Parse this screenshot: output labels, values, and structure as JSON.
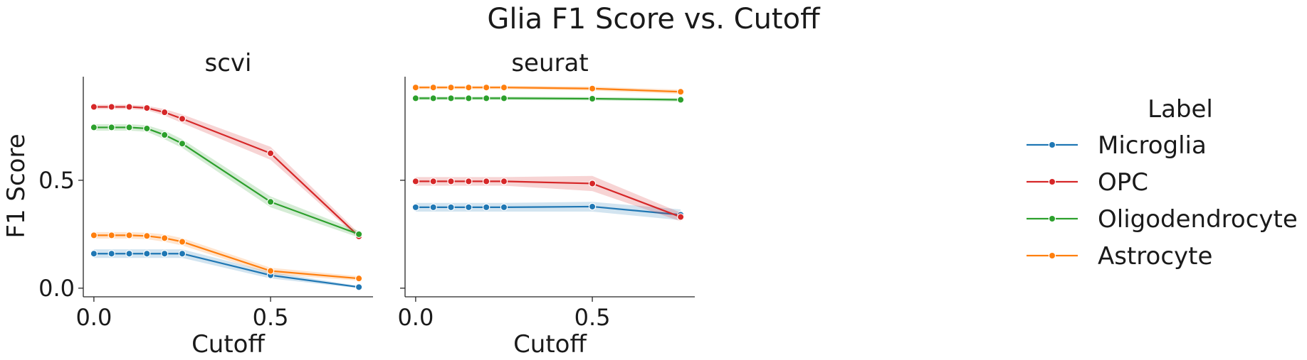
{
  "chart_data": {
    "type": "line",
    "title": "Glia F1 Score vs. Cutoff",
    "ylabel": "F1 Score",
    "xlabel": "Cutoff",
    "xlim": [
      -0.03,
      0.79
    ],
    "ylim": [
      -0.04,
      0.98
    ],
    "xticks": [
      0.0,
      0.5
    ],
    "xtick_labels": [
      "0.0",
      "0.5"
    ],
    "yticks": [
      0.0,
      0.5
    ],
    "ytick_labels": [
      "0.0",
      "0.5"
    ],
    "x": [
      0.0,
      0.05,
      0.1,
      0.15,
      0.2,
      0.25,
      0.5,
      0.75
    ],
    "legend": {
      "title": "Label",
      "placement": "right"
    },
    "panels": [
      {
        "title": "scvi",
        "series": [
          {
            "name": "Microglia",
            "color": "#1f77b4",
            "values": [
              0.16,
              0.16,
              0.16,
              0.16,
              0.16,
              0.16,
              0.06,
              0.005
            ],
            "ci_low": [
              0.14,
              0.14,
              0.14,
              0.14,
              0.14,
              0.14,
              0.045,
              0.0
            ],
            "ci_high": [
              0.18,
              0.18,
              0.18,
              0.18,
              0.18,
              0.18,
              0.075,
              0.01
            ]
          },
          {
            "name": "OPC",
            "color": "#d62728",
            "values": [
              0.84,
              0.84,
              0.84,
              0.835,
              0.815,
              0.785,
              0.625,
              0.24
            ],
            "ci_low": [
              0.83,
              0.83,
              0.83,
              0.825,
              0.8,
              0.765,
              0.595,
              0.23
            ],
            "ci_high": [
              0.85,
              0.85,
              0.85,
              0.845,
              0.83,
              0.805,
              0.655,
              0.255
            ]
          },
          {
            "name": "Oligodendrocyte",
            "color": "#2ca02c",
            "values": [
              0.745,
              0.745,
              0.745,
              0.74,
              0.71,
              0.67,
              0.4,
              0.25
            ],
            "ci_low": [
              0.73,
              0.73,
              0.73,
              0.725,
              0.69,
              0.65,
              0.375,
              0.235
            ],
            "ci_high": [
              0.76,
              0.76,
              0.76,
              0.755,
              0.73,
              0.69,
              0.425,
              0.265
            ]
          },
          {
            "name": "Astrocyte",
            "color": "#ff7f0e",
            "values": [
              0.245,
              0.245,
              0.245,
              0.242,
              0.232,
              0.215,
              0.08,
              0.045
            ],
            "ci_low": [
              0.23,
              0.23,
              0.23,
              0.227,
              0.215,
              0.198,
              0.065,
              0.035
            ],
            "ci_high": [
              0.26,
              0.26,
              0.26,
              0.257,
              0.249,
              0.232,
              0.095,
              0.055
            ]
          }
        ]
      },
      {
        "title": "seurat",
        "series": [
          {
            "name": "Microglia",
            "color": "#1f77b4",
            "values": [
              0.375,
              0.375,
              0.375,
              0.375,
              0.375,
              0.375,
              0.378,
              0.34
            ],
            "ci_low": [
              0.355,
              0.355,
              0.355,
              0.355,
              0.355,
              0.355,
              0.355,
              0.315
            ],
            "ci_high": [
              0.395,
              0.395,
              0.395,
              0.395,
              0.395,
              0.395,
              0.4,
              0.365
            ]
          },
          {
            "name": "OPC",
            "color": "#d62728",
            "values": [
              0.495,
              0.495,
              0.495,
              0.495,
              0.495,
              0.495,
              0.485,
              0.33
            ],
            "ci_low": [
              0.475,
              0.475,
              0.475,
              0.475,
              0.475,
              0.475,
              0.45,
              0.31
            ],
            "ci_high": [
              0.515,
              0.515,
              0.515,
              0.515,
              0.515,
              0.515,
              0.52,
              0.35
            ]
          },
          {
            "name": "Oligodendrocyte",
            "color": "#2ca02c",
            "values": [
              0.88,
              0.88,
              0.88,
              0.88,
              0.88,
              0.88,
              0.878,
              0.873
            ],
            "ci_low": [
              0.872,
              0.872,
              0.872,
              0.872,
              0.872,
              0.872,
              0.87,
              0.865
            ],
            "ci_high": [
              0.888,
              0.888,
              0.888,
              0.888,
              0.888,
              0.888,
              0.886,
              0.881
            ]
          },
          {
            "name": "Astrocyte",
            "color": "#ff7f0e",
            "values": [
              0.93,
              0.93,
              0.93,
              0.93,
              0.93,
              0.93,
              0.925,
              0.91
            ],
            "ci_low": [
              0.922,
              0.922,
              0.922,
              0.922,
              0.922,
              0.922,
              0.916,
              0.9
            ],
            "ci_high": [
              0.938,
              0.938,
              0.938,
              0.938,
              0.938,
              0.938,
              0.934,
              0.92
            ]
          }
        ]
      }
    ]
  }
}
